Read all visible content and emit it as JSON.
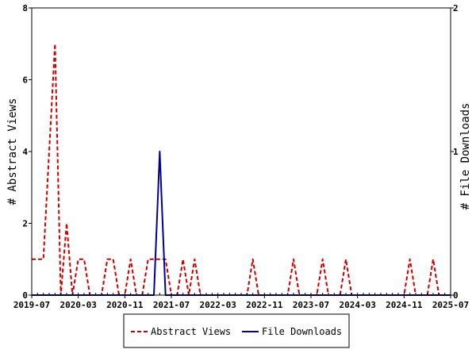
{
  "chart_data": {
    "type": "line",
    "x_unit": "month",
    "x_range": [
      "2019-07",
      "2025-07"
    ],
    "x_ticks": [
      "2019-07",
      "2020-03",
      "2020-11",
      "2021-07",
      "2022-03",
      "2022-11",
      "2023-07",
      "2024-03",
      "2024-11",
      "2025-07"
    ],
    "y_left": {
      "label": "# Abstract Views",
      "range": [
        0,
        8
      ],
      "ticks": [
        "0",
        "2",
        "4",
        "6",
        "8"
      ]
    },
    "y_right": {
      "label": "# File Downloads",
      "range": [
        0,
        2
      ],
      "ticks": [
        "0",
        "1",
        "2"
      ]
    },
    "legend_position": "bottom",
    "grid": false,
    "series": [
      {
        "name": "Abstract Views",
        "axis": "left",
        "color": "#cc0000",
        "style": "dashed",
        "points": [
          [
            "2019-07",
            1
          ],
          [
            "2019-08",
            1
          ],
          [
            "2019-09",
            1
          ],
          [
            "2019-10",
            4
          ],
          [
            "2019-11",
            7
          ],
          [
            "2019-12",
            0
          ],
          [
            "2020-01",
            2
          ],
          [
            "2020-02",
            0
          ],
          [
            "2020-03",
            1
          ],
          [
            "2020-04",
            1
          ],
          [
            "2020-05",
            0
          ],
          [
            "2020-06",
            0
          ],
          [
            "2020-07",
            0
          ],
          [
            "2020-08",
            1
          ],
          [
            "2020-09",
            1
          ],
          [
            "2020-10",
            0
          ],
          [
            "2020-11",
            0
          ],
          [
            "2020-12",
            1
          ],
          [
            "2021-01",
            0
          ],
          [
            "2021-02",
            0
          ],
          [
            "2021-03",
            1
          ],
          [
            "2021-04",
            1
          ],
          [
            "2021-05",
            1
          ],
          [
            "2021-06",
            1
          ],
          [
            "2021-07",
            0
          ],
          [
            "2021-08",
            0
          ],
          [
            "2021-09",
            1
          ],
          [
            "2021-10",
            0
          ],
          [
            "2021-11",
            1
          ],
          [
            "2021-12",
            0
          ],
          [
            "2022-01",
            0
          ],
          [
            "2022-02",
            0
          ],
          [
            "2022-03",
            0
          ],
          [
            "2022-04",
            0
          ],
          [
            "2022-05",
            0
          ],
          [
            "2022-06",
            0
          ],
          [
            "2022-07",
            0
          ],
          [
            "2022-08",
            0
          ],
          [
            "2022-09",
            1
          ],
          [
            "2022-10",
            0
          ],
          [
            "2022-11",
            0
          ],
          [
            "2022-12",
            0
          ],
          [
            "2023-01",
            0
          ],
          [
            "2023-02",
            0
          ],
          [
            "2023-03",
            0
          ],
          [
            "2023-04",
            1
          ],
          [
            "2023-05",
            0
          ],
          [
            "2023-06",
            0
          ],
          [
            "2023-07",
            0
          ],
          [
            "2023-08",
            0
          ],
          [
            "2023-09",
            1
          ],
          [
            "2023-10",
            0
          ],
          [
            "2023-11",
            0
          ],
          [
            "2023-12",
            0
          ],
          [
            "2024-01",
            1
          ],
          [
            "2024-02",
            0
          ],
          [
            "2024-03",
            0
          ],
          [
            "2024-04",
            0
          ],
          [
            "2024-05",
            0
          ],
          [
            "2024-06",
            0
          ],
          [
            "2024-07",
            0
          ],
          [
            "2024-08",
            0
          ],
          [
            "2024-09",
            0
          ],
          [
            "2024-10",
            0
          ],
          [
            "2024-11",
            0
          ],
          [
            "2024-12",
            1
          ],
          [
            "2025-01",
            0
          ],
          [
            "2025-02",
            0
          ],
          [
            "2025-03",
            0
          ],
          [
            "2025-04",
            1
          ],
          [
            "2025-05",
            0
          ],
          [
            "2025-06",
            0
          ],
          [
            "2025-07",
            0
          ]
        ]
      },
      {
        "name": "File Downloads",
        "axis": "right",
        "color": "#000099",
        "style": "solid",
        "points": [
          [
            "2019-07",
            0
          ],
          [
            "2021-03",
            0
          ],
          [
            "2021-04",
            0
          ],
          [
            "2021-05",
            1
          ],
          [
            "2021-06",
            0
          ],
          [
            "2021-07",
            0
          ],
          [
            "2025-07",
            0
          ]
        ]
      }
    ]
  }
}
